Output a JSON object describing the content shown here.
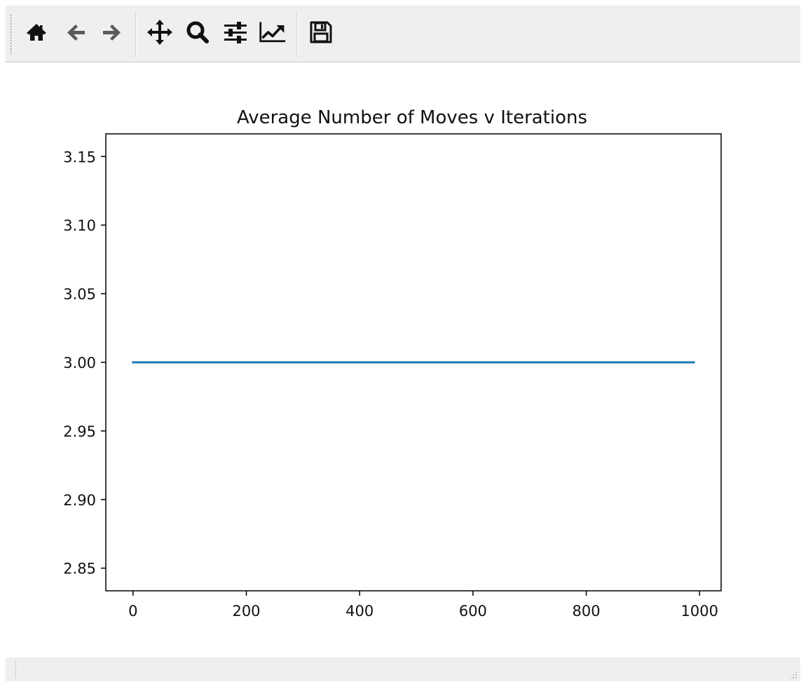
{
  "toolbar": {
    "buttons": [
      {
        "name": "home",
        "icon": "home-icon"
      },
      {
        "name": "back",
        "icon": "arrow-left-icon"
      },
      {
        "name": "forward",
        "icon": "arrow-right-icon"
      },
      {
        "name": "pan",
        "icon": "move-icon"
      },
      {
        "name": "zoom",
        "icon": "magnifier-icon"
      },
      {
        "name": "configure-subplots",
        "icon": "sliders-icon"
      },
      {
        "name": "edit-axis",
        "icon": "line-chart-icon"
      },
      {
        "name": "save",
        "icon": "floppy-disk-icon"
      }
    ]
  },
  "statusbar": {
    "message": ""
  },
  "colors": {
    "toolbar_bg": "#efefef",
    "line": "#1f77b4",
    "icon": "#111111",
    "icon_inactive": "#5a5a5a"
  },
  "chart_data": {
    "type": "line",
    "title": "Average Number of Moves v Iterations",
    "xlabel": "",
    "ylabel": "",
    "xlim": [
      -48,
      1038
    ],
    "ylim": [
      2.8335,
      3.1665
    ],
    "x_ticks": [
      0,
      200,
      400,
      600,
      800,
      1000
    ],
    "y_ticks": [
      2.85,
      2.9,
      2.95,
      3.0,
      3.05,
      3.1,
      3.15
    ],
    "x_tick_labels": [
      "0",
      "200",
      "400",
      "600",
      "800",
      "1000"
    ],
    "y_tick_labels": [
      "2.85",
      "2.90",
      "2.95",
      "3.00",
      "3.05",
      "3.10",
      "3.15"
    ],
    "grid": false,
    "series": [
      {
        "x": [
          0,
          990
        ],
        "y": [
          3.0,
          3.0
        ],
        "color": "#1f77b4"
      }
    ]
  }
}
